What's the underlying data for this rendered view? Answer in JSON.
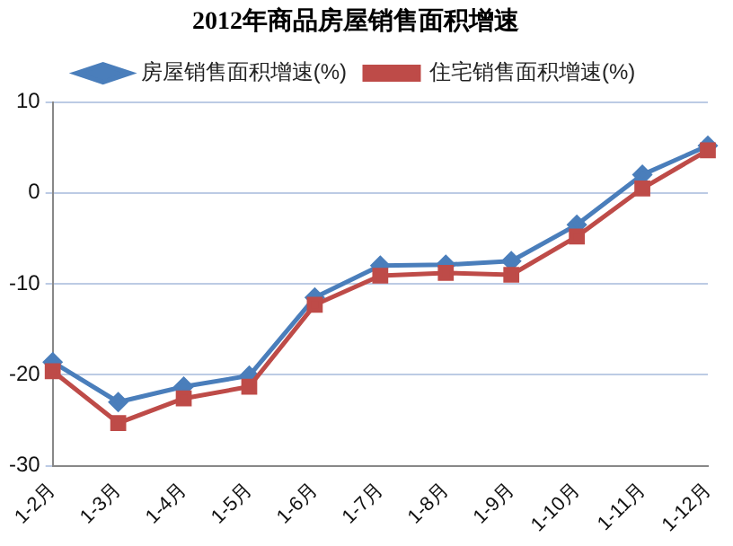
{
  "chart_data": {
    "type": "line",
    "title": "2012年商品房屋销售面积增速",
    "categories": [
      "1-2月",
      "1-3月",
      "1-4月",
      "1-5月",
      "1-6月",
      "1-7月",
      "1-8月",
      "1-9月",
      "1-10月",
      "1-11月",
      "1-12月"
    ],
    "series": [
      {
        "name": "房屋销售面积增速(%)",
        "color": "#4a7ebb",
        "marker": "diamond",
        "values": [
          -18.6,
          -23.0,
          -21.3,
          -20.1,
          -11.5,
          -8.0,
          -7.9,
          -7.5,
          -3.5,
          2.0,
          5.2
        ]
      },
      {
        "name": "住宅销售面积增速(%)",
        "color": "#be4b48",
        "marker": "square",
        "values": [
          -19.6,
          -25.3,
          -22.6,
          -21.3,
          -12.3,
          -9.1,
          -8.8,
          -9.0,
          -4.8,
          0.5,
          4.7
        ]
      }
    ],
    "ylim": [
      -30,
      10
    ],
    "yticks": [
      -30,
      -20,
      -10,
      0,
      10
    ],
    "grid": "y",
    "legend": "top"
  }
}
